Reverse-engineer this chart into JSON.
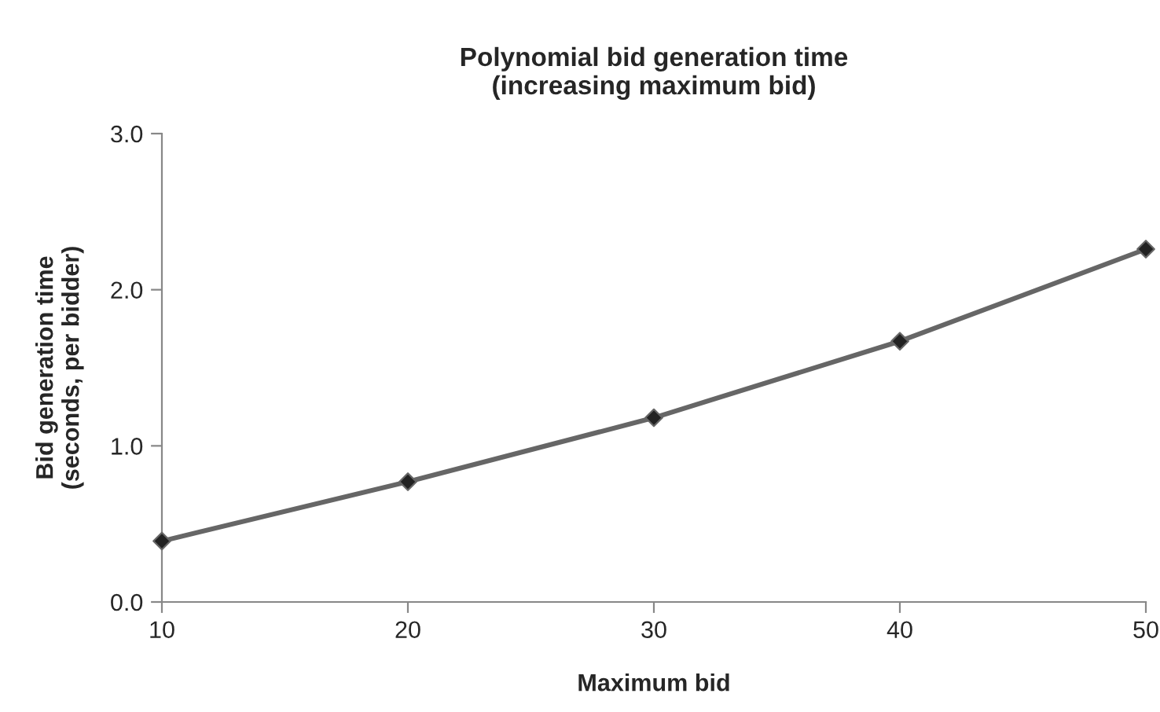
{
  "chart_data": {
    "type": "line",
    "title": "Polynomial bid generation time\n(increasing maximum bid)",
    "xlabel": "Maximum bid",
    "ylabel": "Bid generation time\n(seconds, per bidder)",
    "x": [
      10,
      20,
      30,
      40,
      50
    ],
    "series": [
      {
        "color": "#666666",
        "values": [
          0.39,
          0.77,
          1.18,
          1.67,
          2.26
        ]
      }
    ],
    "xlim": [
      10,
      50
    ],
    "xticks": [
      10,
      20,
      30,
      40,
      50
    ],
    "ylim": [
      0,
      3
    ],
    "yticks": [
      {
        "value": 0,
        "label": "0.0"
      },
      {
        "value": 1,
        "label": "1.0"
      },
      {
        "value": 2,
        "label": "2.0"
      },
      {
        "value": 3,
        "label": "3.0"
      }
    ],
    "grid": false,
    "marker": "diamond",
    "line_style": "solid",
    "legend": false
  }
}
